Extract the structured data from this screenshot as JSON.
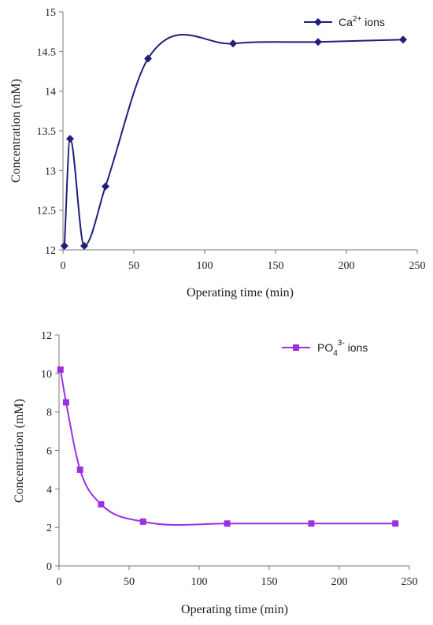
{
  "chart_data": [
    {
      "type": "line",
      "xlabel": "Operating time (min)",
      "ylabel": "Concentration (mM)",
      "xlim": [
        0,
        250
      ],
      "ylim": [
        12,
        15
      ],
      "xticks": [
        "0",
        "50",
        "100",
        "150",
        "200",
        "250"
      ],
      "yticks": [
        "12",
        "12.5",
        "13",
        "13.5",
        "14",
        "14.5",
        "15"
      ],
      "grid": false,
      "legend_position": "top-right",
      "marker": "diamond",
      "color": "#1f1f7a",
      "series": [
        {
          "name": "Ca2+ ions",
          "legend": {
            "base": "Ca",
            "sup": "2+",
            "rest": " ions"
          },
          "x": [
            1,
            5,
            15,
            30,
            60,
            120,
            180,
            240
          ],
          "y": [
            12.05,
            13.4,
            12.05,
            12.8,
            14.41,
            14.6,
            14.62,
            14.65
          ]
        }
      ]
    },
    {
      "type": "line",
      "xlabel": "Operating time (min)",
      "ylabel": "Concentration (mM)",
      "xlim": [
        0,
        250
      ],
      "ylim": [
        0,
        12
      ],
      "xticks": [
        "0",
        "50",
        "100",
        "150",
        "200",
        "250"
      ],
      "yticks": [
        "0",
        "2",
        "4",
        "6",
        "8",
        "10",
        "12"
      ],
      "grid": false,
      "legend_position": "top-right",
      "marker": "square",
      "color": "#9b30e0",
      "series": [
        {
          "name": "PO43- ions",
          "legend": {
            "base": "PO",
            "sub": "4",
            "sup": "3-",
            "rest": " ions"
          },
          "x": [
            1,
            5,
            15,
            30,
            60,
            120,
            180,
            240
          ],
          "y": [
            10.2,
            8.5,
            5.0,
            3.2,
            2.3,
            2.2,
            2.2,
            2.2
          ]
        }
      ]
    }
  ]
}
